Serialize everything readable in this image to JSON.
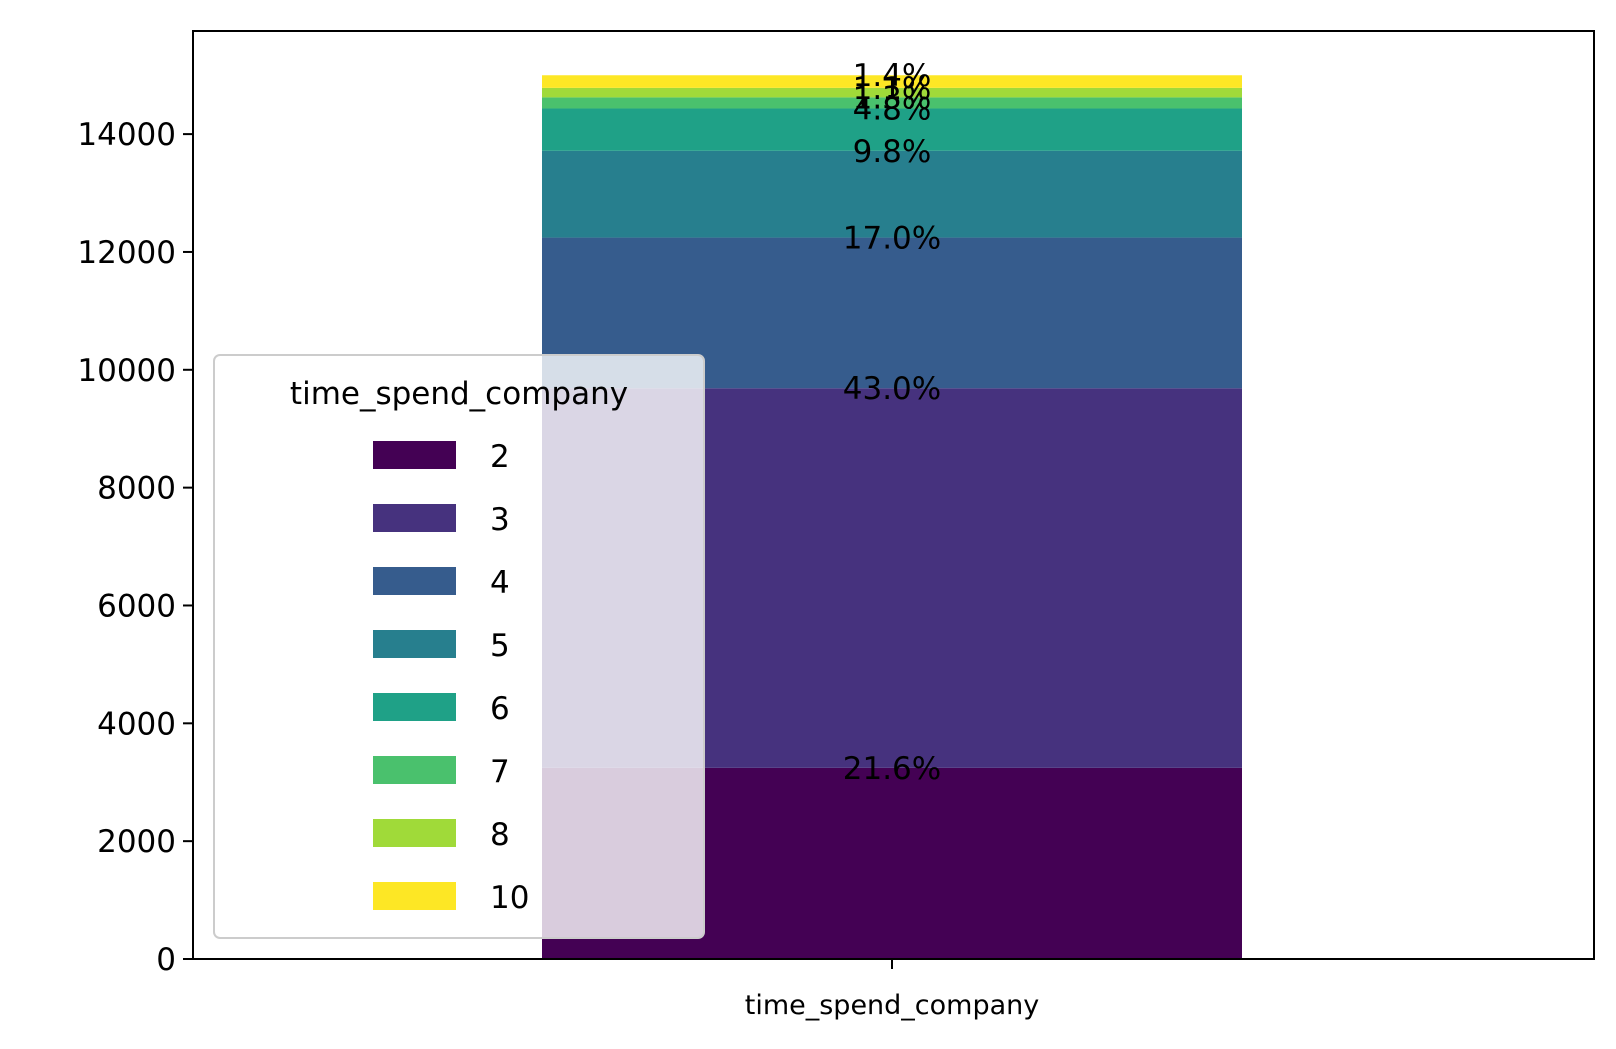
{
  "chart_data": {
    "type": "bar",
    "stacked": true,
    "categories": [
      "time_spend_company"
    ],
    "xlabel": "",
    "ylabel": "",
    "ylim": [
      0,
      15750
    ],
    "yticks": [
      0,
      2000,
      4000,
      6000,
      8000,
      10000,
      12000,
      14000
    ],
    "grid": false,
    "legend": {
      "title": "time_spend_company",
      "placement": "lower-left"
    },
    "series": [
      {
        "name": "2",
        "values": [
          3244
        ],
        "label": "21.6%",
        "color": "#440154"
      },
      {
        "name": "3",
        "values": [
          6443
        ],
        "label": "43.0%",
        "color": "#46327e"
      },
      {
        "name": "4",
        "values": [
          2557
        ],
        "label": "17.0%",
        "color": "#365c8d"
      },
      {
        "name": "5",
        "values": [
          1473
        ],
        "label": "9.8%",
        "color": "#277f8e"
      },
      {
        "name": "6",
        "values": [
          718
        ],
        "label": "4.8%",
        "color": "#1fa187"
      },
      {
        "name": "7",
        "values": [
          188
        ],
        "label": "1.3%",
        "color": "#4ac16d"
      },
      {
        "name": "8",
        "values": [
          162
        ],
        "label": "1.1%",
        "color": "#a0da39"
      },
      {
        "name": "10",
        "values": [
          214
        ],
        "label": "1.4%",
        "color": "#fde725"
      }
    ]
  }
}
